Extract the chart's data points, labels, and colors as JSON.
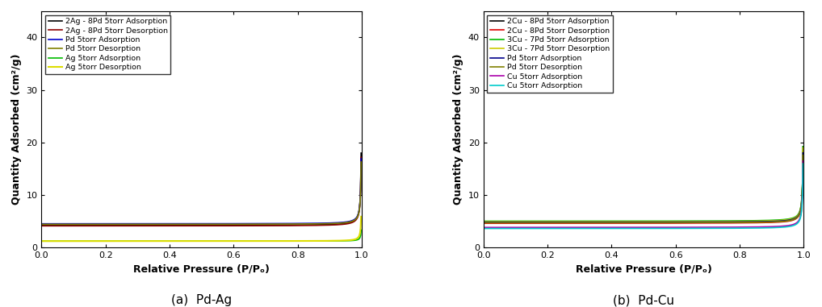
{
  "panel_a_title": "(a)  Pd-Ag",
  "panel_b_title": "(b)  Pd-Cu",
  "xlabel": "Relative Pressure (P/Pₒ)",
  "ylabel": "Quantity Adsorbed (cm²/g)",
  "xlim": [
    0.0,
    1.0
  ],
  "ylim": [
    0.0,
    45
  ],
  "yticks": [
    0,
    10,
    20,
    30,
    40
  ],
  "xticks": [
    0.0,
    0.2,
    0.4,
    0.6,
    0.8,
    1.0
  ],
  "panel_a_legend": [
    {
      "label": "2Ag - 8Pd 5torr Adsorption",
      "color": "#000000",
      "lw": 1.2
    },
    {
      "label": "2Ag - 8Pd 5torr Desorption",
      "color": "#8B0000",
      "lw": 1.2
    },
    {
      "label": "Pd 5torr Adsorption",
      "color": "#0000CC",
      "lw": 1.2
    },
    {
      "label": "Pd 5torr Desorption",
      "color": "#808000",
      "lw": 1.2
    },
    {
      "label": "Ag 5torr Adsorption",
      "color": "#00BB00",
      "lw": 1.2
    },
    {
      "label": "Ag 5torr Desorption",
      "color": "#DDDD00",
      "lw": 1.5
    }
  ],
  "panel_b_legend": [
    {
      "label": "2Cu - 8Pd 5torr Adsorption",
      "color": "#000000",
      "lw": 1.2
    },
    {
      "label": "2Cu - 8Pd 5torr Desorption",
      "color": "#DD0000",
      "lw": 1.2
    },
    {
      "label": "3Cu - 7Pd 5torr Adsorption",
      "color": "#00BB00",
      "lw": 1.2
    },
    {
      "label": "3Cu - 7Pd 5torr Desorption",
      "color": "#CCCC00",
      "lw": 1.2
    },
    {
      "label": "Pd 5torr Adsorption",
      "color": "#00008B",
      "lw": 1.2
    },
    {
      "label": "Pd 5torr Desorption",
      "color": "#808000",
      "lw": 1.2
    },
    {
      "label": "Cu 5torr Adsorption",
      "color": "#AA00AA",
      "lw": 1.2
    },
    {
      "label": "Cu 5torr Adsorption",
      "color": "#00CCCC",
      "lw": 1.2
    }
  ],
  "background_color": "#ffffff",
  "label_fontsize": 9,
  "tick_fontsize": 8,
  "legend_fontsize": 6.8,
  "caption_fontsize": 11
}
